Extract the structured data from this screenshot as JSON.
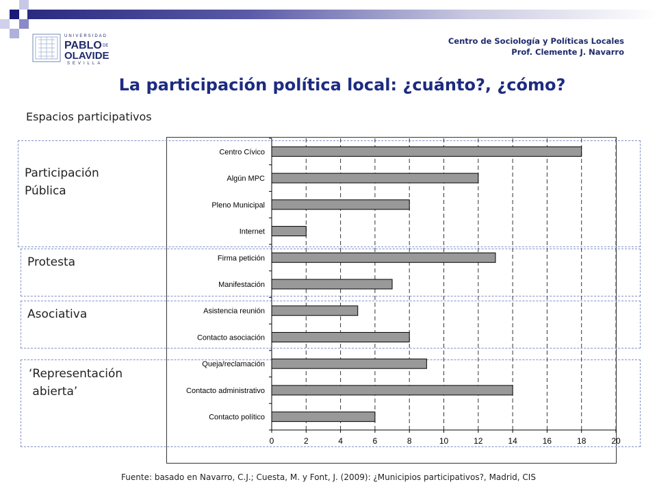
{
  "header": {
    "centre_line1": "Centro de Sociología y Políticas Locales",
    "centre_line2": "Prof. Clemente J. Navarro",
    "logo": {
      "line_top": "UNIVERSIDAD",
      "word1": "PABLO",
      "de": "DE",
      "word2": "OLAVIDE",
      "line_bottom": "SEVILLA"
    }
  },
  "slide": {
    "title": "La participación política local: ¿cuánto?, ¿cómo?",
    "subtitle": "Espacios participativos",
    "groups": [
      {
        "line1": "Participación",
        "line2": "Pública"
      },
      {
        "line1": "Protesta",
        "line2": ""
      },
      {
        "line1": "Asociativa",
        "line2": ""
      },
      {
        "line1": "‘Representación",
        "line2": " abierta’"
      }
    ],
    "source": "Fuente: basado en Navarro, C.J.; Cuesta, M. y Font, J. (2009): ¿Municipios participativos?, Madrid, CIS"
  },
  "colors": {
    "title": "#1c2b80",
    "bar_fill": "#999999",
    "group_border": "#8090c8"
  },
  "chart_data": {
    "type": "bar",
    "orientation": "horizontal",
    "categories": [
      "Centro Cívico",
      "Algún MPC",
      "Pleno Municipal",
      "Internet",
      "Firma petición",
      "Manifestación",
      "Asistencia reunión",
      "Contacto asociación",
      "Queja/reclamación",
      "Contacto administrativo",
      "Contacto político"
    ],
    "values": [
      18,
      12,
      8,
      2,
      13,
      7,
      5,
      8,
      9,
      14,
      6
    ],
    "xlim": [
      0,
      20
    ],
    "xticks": [
      0,
      2,
      4,
      6,
      8,
      10,
      12,
      14,
      16,
      18,
      20
    ],
    "grid": "vertical dashed",
    "title": "",
    "xlabel": "",
    "ylabel": ""
  }
}
